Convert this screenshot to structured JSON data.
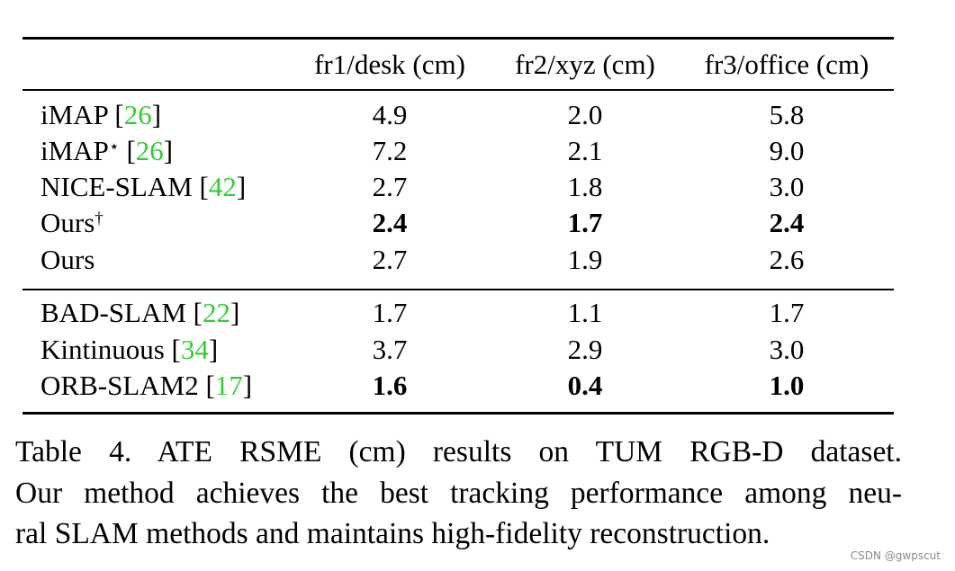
{
  "table": {
    "columns": [
      "fr1/desk (cm)",
      "fr2/xyz (cm)",
      "fr3/office (cm)"
    ],
    "groups": [
      {
        "rows": [
          {
            "name": "iMAP",
            "mark": "",
            "cite": "26",
            "values": [
              "4.9",
              "2.0",
              "5.8"
            ]
          },
          {
            "name": "iMAP",
            "mark": "⋆",
            "cite": "26",
            "values": [
              "7.2",
              "2.1",
              "9.0"
            ]
          },
          {
            "name": "NICE-SLAM",
            "mark": "",
            "cite": "42",
            "values": [
              "2.7",
              "1.8",
              "3.0"
            ]
          },
          {
            "name": "Ours",
            "mark": "†",
            "cite": "",
            "values": [
              "2.4",
              "1.7",
              "2.4"
            ],
            "bold": true
          },
          {
            "name": "Ours",
            "mark": "",
            "cite": "",
            "values": [
              "2.7",
              "1.9",
              "2.6"
            ]
          }
        ]
      },
      {
        "rows": [
          {
            "name": "BAD-SLAM",
            "mark": "",
            "cite": "22",
            "values": [
              "1.7",
              "1.1",
              "1.7"
            ]
          },
          {
            "name": "Kintinuous",
            "mark": "",
            "cite": "34",
            "values": [
              "3.7",
              "2.9",
              "3.0"
            ]
          },
          {
            "name": "ORB-SLAM2",
            "mark": "",
            "cite": "17",
            "values": [
              "1.6",
              "0.4",
              "1.0"
            ],
            "bold": true
          }
        ]
      }
    ]
  },
  "caption": "Table 4.  ATE RSME (cm) results on TUM RGB-D dataset. Our method achieves the best tracking performance among neu-ral SLAM methods and maintains high-fidelity reconstruction.",
  "caption_lines": [
    "Table 4.  ATE RSME (cm) results on TUM RGB-D dataset.",
    "Our method achieves the best tracking performance among neu-",
    "ral SLAM methods and maintains high-fidelity reconstruction."
  ],
  "watermark": "CSDN @gwpscut"
}
